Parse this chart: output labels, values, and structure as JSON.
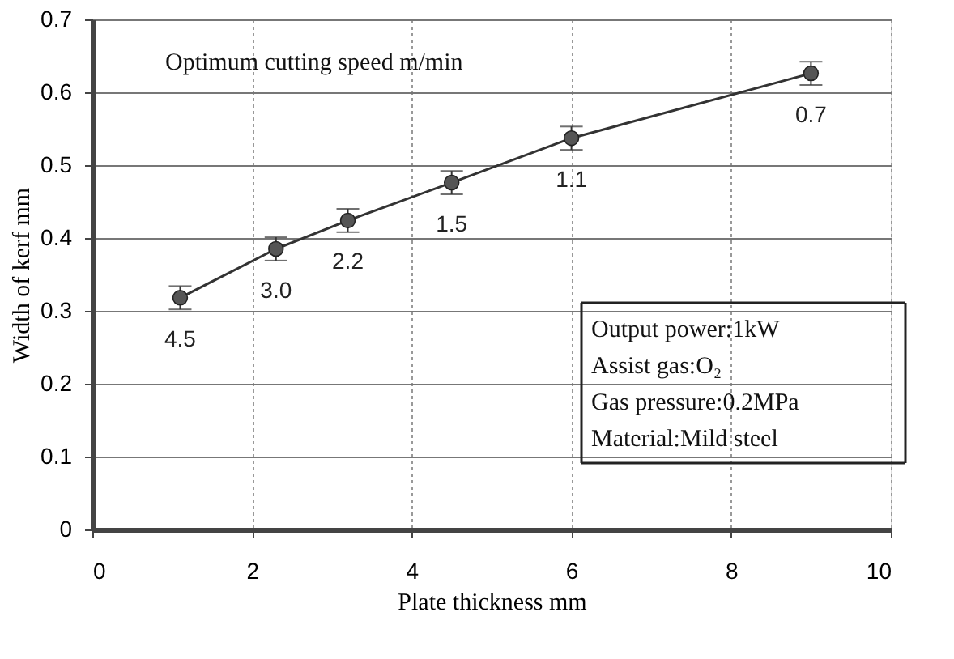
{
  "chart_data": {
    "type": "line",
    "xlabel": "Plate thickness   mm",
    "ylabel": "Width of kerf   mm",
    "x": [
      1.1,
      2.3,
      3.2,
      4.5,
      6.0,
      9.0
    ],
    "series": [
      {
        "color": "#555555",
        "values": [
          0.318,
          0.385,
          0.424,
          0.476,
          0.537,
          0.626
        ],
        "errors": [
          0.016,
          0.016,
          0.016,
          0.016,
          0.016,
          0.016
        ]
      }
    ],
    "xlim": [
      0,
      10
    ],
    "xticks": [
      0,
      2,
      4,
      6,
      8,
      10
    ],
    "ylim": [
      0,
      0.7
    ],
    "yticks": [
      0,
      0.1,
      0.2,
      0.3,
      0.4,
      0.5,
      0.6,
      0.7
    ],
    "grid": true,
    "marker": "circle",
    "line_style": "solid",
    "annotations": [
      "Optimum cutting speed   m/min",
      {
        "text": "4.5",
        "x": 1.1,
        "y": 0.318
      },
      {
        "text": "3.0",
        "x": 2.3,
        "y": 0.385
      },
      {
        "text": "2.2",
        "x": 3.2,
        "y": 0.424
      },
      {
        "text": "1.5",
        "x": 4.5,
        "y": 0.476
      },
      {
        "text": "1.1",
        "x": 6.0,
        "y": 0.537
      },
      {
        "text": "0.7",
        "x": 9.0,
        "y": 0.626
      },
      "Output power:1kW",
      "Assist gas:O₂",
      "Gas pressure:0.2MPa",
      "Material:Mild steel"
    ]
  }
}
